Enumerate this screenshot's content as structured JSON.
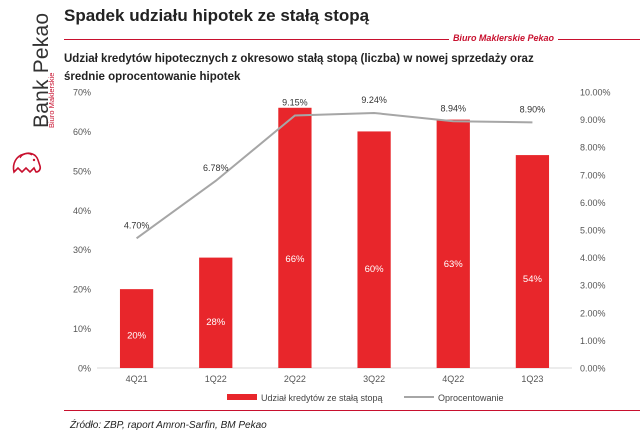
{
  "header": {
    "title": "Spadek udziału hipotek ze stałą stopą",
    "company": "Biuro Maklerskie Pekao"
  },
  "sidebar": {
    "brand": "Bank Pekao",
    "sub_brand": "Biuro Maklerskie"
  },
  "chart_data": {
    "type": "bar",
    "title": "Udział kredytów hipotecznych z okresowo stałą stopą (liczba) w nowej sprzedaży oraz średnie oprocentowanie hipotek",
    "categories": [
      "4Q21",
      "1Q22",
      "2Q22",
      "3Q22",
      "4Q22",
      "1Q23"
    ],
    "series": [
      {
        "name": "Udział kredytów ze stałą stopą",
        "type": "bar",
        "axis": "left",
        "values": [
          20,
          28,
          66,
          60,
          63,
          54
        ],
        "labels": [
          "20%",
          "28%",
          "66%",
          "60%",
          "63%",
          "54%"
        ],
        "color": "#e8262b"
      },
      {
        "name": "Oprocentowanie",
        "type": "line",
        "axis": "right",
        "values": [
          4.7,
          6.78,
          9.15,
          9.24,
          8.94,
          8.9
        ],
        "labels": [
          "4.70%",
          "6.78%",
          "9.15%",
          "9.24%",
          "8.94%",
          "8.90%"
        ],
        "color": "#a6a6a6"
      }
    ],
    "y_left": {
      "ylim": [
        0,
        70
      ],
      "ticks": [
        "0%",
        "10%",
        "20%",
        "30%",
        "40%",
        "50%",
        "60%",
        "70%"
      ]
    },
    "y_right": {
      "ylim": [
        0,
        10
      ],
      "ticks": [
        "0.00%",
        "1.00%",
        "2.00%",
        "3.00%",
        "4.00%",
        "5.00%",
        "6.00%",
        "7.00%",
        "8.00%",
        "9.00%",
        "10.00%"
      ]
    },
    "grid": false,
    "legend": "bottom"
  },
  "source": "Źródło: ZBP, raport Amron-Sarfin, BM Pekao"
}
